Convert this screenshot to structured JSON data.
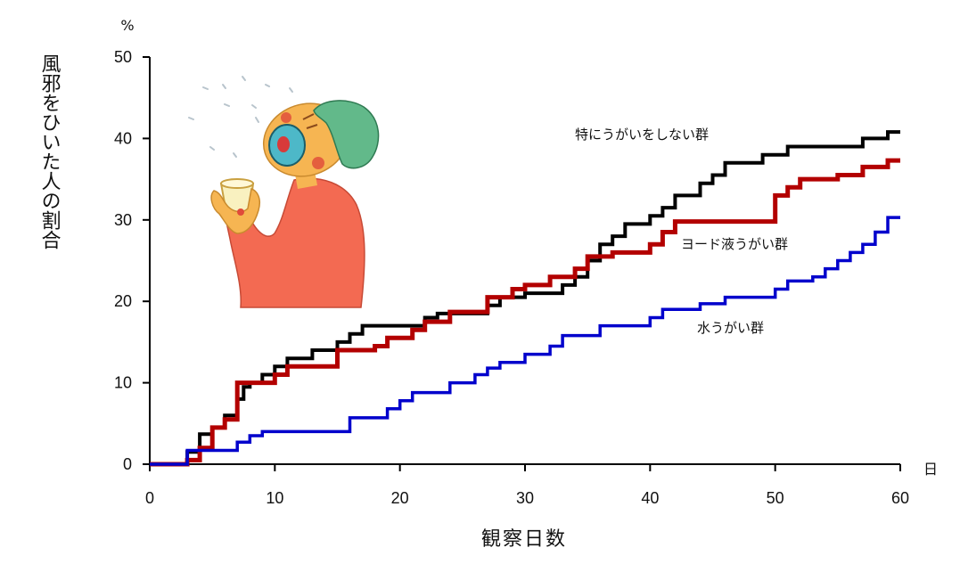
{
  "chart_data": {
    "type": "line",
    "step": true,
    "xlabel": "観察日数",
    "ylabel": "風邪をひいた人の割合",
    "x_unit": "日",
    "y_unit": "%",
    "xlim": [
      0,
      60
    ],
    "ylim": [
      0,
      50
    ],
    "x_ticks": [
      "0",
      "10",
      "20",
      "30",
      "40",
      "50",
      "60"
    ],
    "y_ticks": [
      "0",
      "10",
      "20",
      "30",
      "40",
      "50"
    ],
    "grid": false,
    "series": [
      {
        "name": "特にうがいをしない群",
        "color": "#000000",
        "points": [
          [
            0,
            0
          ],
          [
            3,
            0
          ],
          [
            3,
            1.5
          ],
          [
            4,
            1.5
          ],
          [
            4,
            3.7
          ],
          [
            5,
            3.7
          ],
          [
            5,
            4.5
          ],
          [
            6,
            4.5
          ],
          [
            6,
            6
          ],
          [
            7,
            6
          ],
          [
            7,
            8
          ],
          [
            7.5,
            8
          ],
          [
            7.5,
            9.5
          ],
          [
            8,
            9.5
          ],
          [
            8,
            10
          ],
          [
            9,
            10
          ],
          [
            9,
            11
          ],
          [
            10,
            11
          ],
          [
            10,
            12
          ],
          [
            11,
            12
          ],
          [
            11,
            13
          ],
          [
            13,
            13
          ],
          [
            13,
            14
          ],
          [
            15,
            14
          ],
          [
            15,
            15
          ],
          [
            16,
            15
          ],
          [
            16,
            16
          ],
          [
            17,
            16
          ],
          [
            17,
            17
          ],
          [
            22,
            17
          ],
          [
            22,
            18
          ],
          [
            23,
            18
          ],
          [
            23,
            18.5
          ],
          [
            27,
            18.5
          ],
          [
            27,
            19.5
          ],
          [
            28,
            19.5
          ],
          [
            28,
            20.5
          ],
          [
            30,
            20.5
          ],
          [
            30,
            21
          ],
          [
            33,
            21
          ],
          [
            33,
            22
          ],
          [
            34,
            22
          ],
          [
            34,
            23
          ],
          [
            35,
            23
          ],
          [
            35,
            25
          ],
          [
            36,
            25
          ],
          [
            36,
            27
          ],
          [
            37,
            27
          ],
          [
            37,
            28
          ],
          [
            38,
            28
          ],
          [
            38,
            29.5
          ],
          [
            40,
            29.5
          ],
          [
            40,
            30.5
          ],
          [
            41,
            30.5
          ],
          [
            41,
            31.5
          ],
          [
            42,
            31.5
          ],
          [
            42,
            33
          ],
          [
            44,
            33
          ],
          [
            44,
            34.5
          ],
          [
            45,
            34.5
          ],
          [
            45,
            35.5
          ],
          [
            46,
            35.5
          ],
          [
            46,
            37
          ],
          [
            49,
            37
          ],
          [
            49,
            38
          ],
          [
            51,
            38
          ],
          [
            51,
            39
          ],
          [
            57,
            39
          ],
          [
            57,
            40
          ],
          [
            59,
            40
          ],
          [
            59,
            40.8
          ],
          [
            60,
            40.8
          ]
        ]
      },
      {
        "name": "ヨード液うがい群",
        "color": "#b30000",
        "points": [
          [
            0,
            0
          ],
          [
            3,
            0
          ],
          [
            3,
            0.5
          ],
          [
            4,
            0.5
          ],
          [
            4,
            2
          ],
          [
            5,
            2
          ],
          [
            5,
            4.5
          ],
          [
            6,
            4.5
          ],
          [
            6,
            5.5
          ],
          [
            7,
            5.5
          ],
          [
            7,
            10
          ],
          [
            10,
            10
          ],
          [
            10,
            11
          ],
          [
            11,
            11
          ],
          [
            11,
            12
          ],
          [
            15,
            12
          ],
          [
            15,
            14
          ],
          [
            18,
            14
          ],
          [
            18,
            14.5
          ],
          [
            19,
            14.5
          ],
          [
            19,
            15.5
          ],
          [
            21,
            15.5
          ],
          [
            21,
            16.5
          ],
          [
            22,
            16.5
          ],
          [
            22,
            17.5
          ],
          [
            24,
            17.5
          ],
          [
            24,
            18.7
          ],
          [
            27,
            18.7
          ],
          [
            27,
            20.5
          ],
          [
            29,
            20.5
          ],
          [
            29,
            21.5
          ],
          [
            30,
            21.5
          ],
          [
            30,
            22
          ],
          [
            32,
            22
          ],
          [
            32,
            23
          ],
          [
            34,
            23
          ],
          [
            34,
            24
          ],
          [
            35,
            24
          ],
          [
            35,
            25.5
          ],
          [
            37,
            25.5
          ],
          [
            37,
            26
          ],
          [
            40,
            26
          ],
          [
            40,
            27
          ],
          [
            41,
            27
          ],
          [
            41,
            28.5
          ],
          [
            42,
            28.5
          ],
          [
            42,
            29.8
          ],
          [
            50,
            29.8
          ],
          [
            50,
            33
          ],
          [
            51,
            33
          ],
          [
            51,
            34
          ],
          [
            52,
            34
          ],
          [
            52,
            35
          ],
          [
            55,
            35
          ],
          [
            55,
            35.5
          ],
          [
            57,
            35.5
          ],
          [
            57,
            36.5
          ],
          [
            59,
            36.5
          ],
          [
            59,
            37.3
          ],
          [
            60,
            37.3
          ]
        ]
      },
      {
        "name": "水うがい群",
        "color": "#0000cc",
        "points": [
          [
            0,
            0
          ],
          [
            3,
            0
          ],
          [
            3,
            1.7
          ],
          [
            7,
            1.7
          ],
          [
            7,
            2.7
          ],
          [
            8,
            2.7
          ],
          [
            8,
            3.5
          ],
          [
            9,
            3.5
          ],
          [
            9,
            4
          ],
          [
            16,
            4
          ],
          [
            16,
            5.7
          ],
          [
            19,
            5.7
          ],
          [
            19,
            6.8
          ],
          [
            20,
            6.8
          ],
          [
            20,
            7.8
          ],
          [
            21,
            7.8
          ],
          [
            21,
            8.8
          ],
          [
            24,
            8.8
          ],
          [
            24,
            10
          ],
          [
            26,
            10
          ],
          [
            26,
            11
          ],
          [
            27,
            11
          ],
          [
            27,
            11.8
          ],
          [
            28,
            11.8
          ],
          [
            28,
            12.5
          ],
          [
            30,
            12.5
          ],
          [
            30,
            13.5
          ],
          [
            32,
            13.5
          ],
          [
            32,
            14.5
          ],
          [
            33,
            14.5
          ],
          [
            33,
            15.8
          ],
          [
            36,
            15.8
          ],
          [
            36,
            17
          ],
          [
            40,
            17
          ],
          [
            40,
            18
          ],
          [
            41,
            18
          ],
          [
            41,
            19
          ],
          [
            44,
            19
          ],
          [
            44,
            19.7
          ],
          [
            46,
            19.7
          ],
          [
            46,
            20.5
          ],
          [
            50,
            20.5
          ],
          [
            50,
            21.5
          ],
          [
            51,
            21.5
          ],
          [
            51,
            22.5
          ],
          [
            53,
            22.5
          ],
          [
            53,
            23
          ],
          [
            54,
            23
          ],
          [
            54,
            24
          ],
          [
            55,
            24
          ],
          [
            55,
            25
          ],
          [
            56,
            25
          ],
          [
            56,
            26
          ],
          [
            57,
            26
          ],
          [
            57,
            27
          ],
          [
            58,
            27
          ],
          [
            58,
            28.5
          ],
          [
            59,
            28.5
          ],
          [
            59,
            30.3
          ],
          [
            60,
            30.3
          ]
        ]
      }
    ],
    "annotations": [
      "特にうがいをしない群",
      "ヨード液うがい群",
      "水うがい群"
    ]
  }
}
